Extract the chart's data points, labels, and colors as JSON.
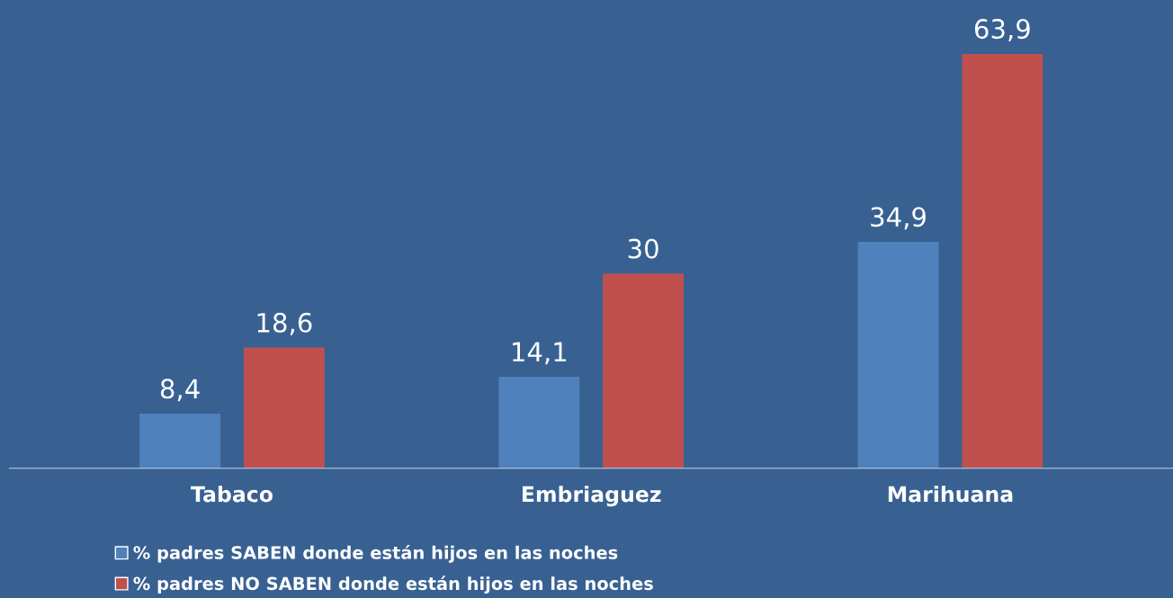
{
  "chart_data": {
    "type": "bar",
    "categories": [
      "Tabaco",
      "Embriaguez",
      "Marihuana"
    ],
    "series": [
      {
        "name": "% padres SABEN donde están hijos en las noches",
        "color": "#4f81bd",
        "values": [
          8.4,
          14.1,
          34.9
        ],
        "value_labels": [
          "8,4",
          "14,1",
          "34,9"
        ]
      },
      {
        "name": "% padres NO SABEN donde están hijos en las noches",
        "color": "#c0504d",
        "values": [
          18.6,
          30,
          63.9
        ],
        "value_labels": [
          "18,6",
          "30",
          "63,9"
        ]
      }
    ],
    "legend": "bottom",
    "grid": false,
    "tick_labels": "x"
  }
}
